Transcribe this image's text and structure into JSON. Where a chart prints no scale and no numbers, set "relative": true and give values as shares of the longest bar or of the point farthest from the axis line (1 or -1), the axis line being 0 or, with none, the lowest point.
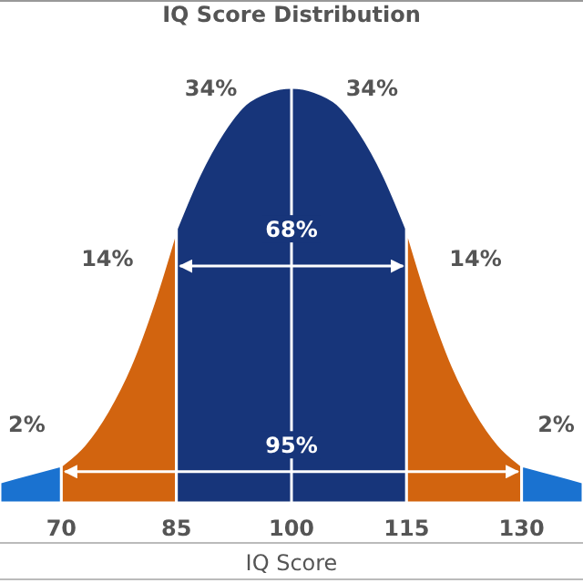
{
  "chart_data": {
    "type": "area",
    "title": "IQ Score Distribution",
    "xlabel": "IQ Score",
    "relative": true,
    "xlim": [
      62,
      138
    ],
    "xticks": [
      70,
      85,
      100,
      115,
      130
    ],
    "grid": false,
    "series": [
      {
        "color": "#1a72d0",
        "x": [
          62,
          64,
          66,
          68,
          70
        ],
        "values": [
          0.05,
          0.06,
          0.07,
          0.08,
          0.09
        ]
      },
      {
        "color": "#d2640f",
        "x": [
          70,
          73,
          76,
          79,
          82,
          85
        ],
        "values": [
          0.09,
          0.14,
          0.22,
          0.33,
          0.48,
          0.66
        ]
      },
      {
        "color": "#17357a",
        "x": [
          85,
          88,
          91,
          94,
          97,
          100,
          103,
          106,
          109,
          112,
          115
        ],
        "values": [
          0.66,
          0.79,
          0.89,
          0.96,
          0.99,
          1,
          0.99,
          0.96,
          0.89,
          0.79,
          0.66
        ]
      },
      {
        "color": "#d2640f",
        "x": [
          115,
          118,
          121,
          124,
          127,
          130
        ],
        "values": [
          0.66,
          0.48,
          0.33,
          0.22,
          0.14,
          0.09
        ]
      },
      {
        "color": "#1a72d0",
        "x": [
          130,
          132,
          134,
          136,
          138
        ],
        "values": [
          0.09,
          0.08,
          0.07,
          0.06,
          0.05
        ]
      }
    ],
    "ref_lines": [
      {
        "axis": "x",
        "value": 100,
        "color": "#ffffff"
      }
    ],
    "annotations": [
      "34%",
      "34%",
      "68%",
      "14%",
      "14%",
      "95%",
      "2%",
      "2%"
    ]
  }
}
